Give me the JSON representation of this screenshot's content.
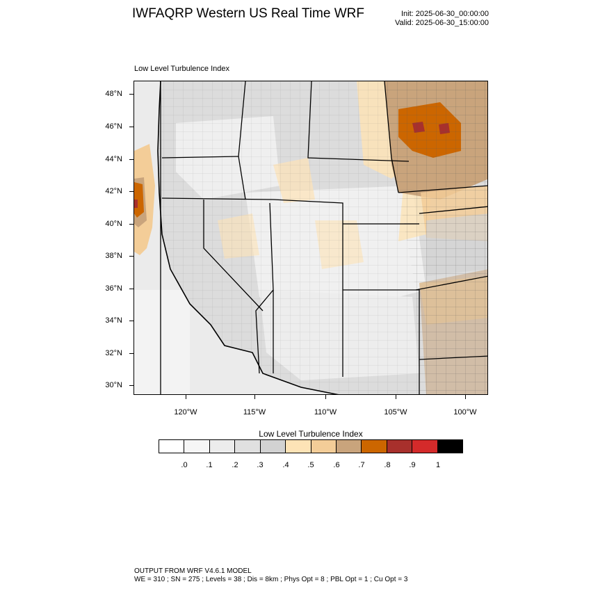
{
  "header": {
    "title": "IWFAQRP Western US Real Time WRF",
    "init": "Init: 2025-06-30_00:00:00",
    "valid": "Valid: 2025-06-30_15:00:00"
  },
  "plot": {
    "field_label": "Low Level Turbulence Index",
    "lat_labels": [
      "48°N",
      "46°N",
      "44°N",
      "42°N",
      "40°N",
      "38°N",
      "36°N",
      "34°N",
      "32°N",
      "30°N"
    ],
    "lon_labels": [
      "120°W",
      "115°W",
      "110°W",
      "105°W",
      "100°W"
    ]
  },
  "colorbar": {
    "title": "Low Level Turbulence Index",
    "colors": [
      "#ffffff",
      "#f6f6f6",
      "#ececec",
      "#e0e0e0",
      "#d2d2d2",
      "#fde3b6",
      "#f3cd98",
      "#c9a47c",
      "#cc6600",
      "#a8302c",
      "#d42a2a",
      "#000000"
    ],
    "labels": [
      ".0",
      ".1",
      ".2",
      ".3",
      ".4",
      ".5",
      ".6",
      ".7",
      ".8",
      ".9",
      "1"
    ]
  },
  "footer": {
    "line1": "OUTPUT FROM WRF V4.6.1 MODEL",
    "line2": "WE = 310 ; SN = 275 ; Levels = 38 ; Dis = 8km ; Phys Opt = 8 ; PBL Opt = 1 ; Cu Opt = 3"
  }
}
